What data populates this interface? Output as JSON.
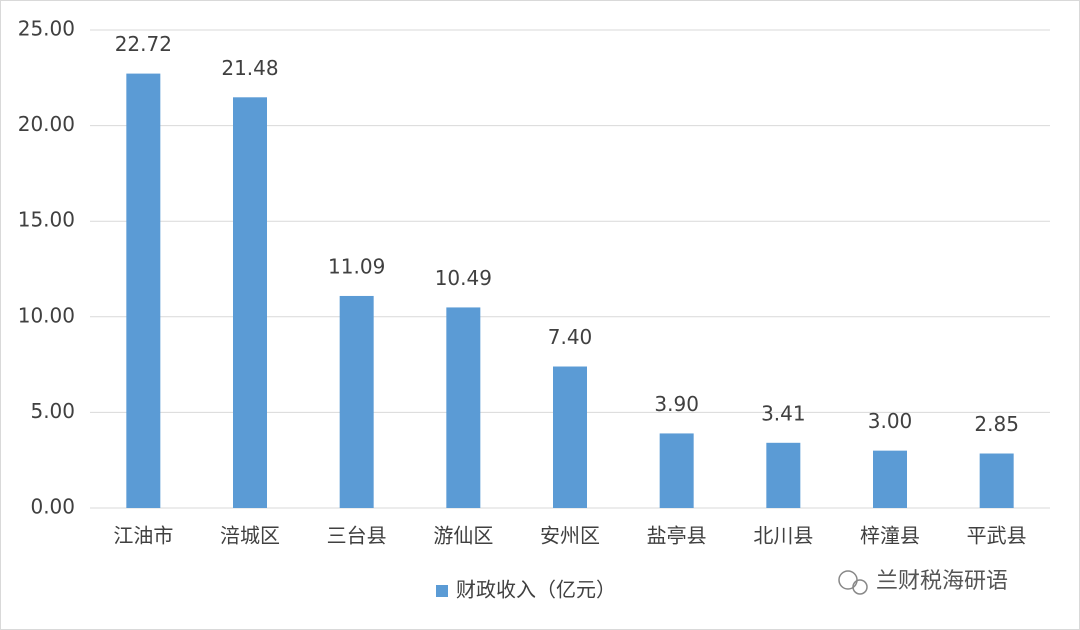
{
  "chart_data": {
    "type": "bar",
    "categories": [
      "江油市",
      "涪城区",
      "三台县",
      "游仙区",
      "安州区",
      "盐亭县",
      "北川县",
      "梓潼县",
      "平武县"
    ],
    "series": [
      {
        "name": "财政收入（亿元）",
        "color": "#5b9bd5",
        "values": [
          22.72,
          21.48,
          11.09,
          10.49,
          7.4,
          3.9,
          3.41,
          3.0,
          2.85
        ],
        "value_labels": [
          "22.72",
          "21.48",
          "11.09",
          "10.49",
          "7.40",
          "3.90",
          "3.41",
          "3.00",
          "2.85"
        ]
      }
    ],
    "ylim": [
      0,
      25
    ],
    "yticks": [
      {
        "value": 0,
        "label": "0.00"
      },
      {
        "value": 5,
        "label": "5.00"
      },
      {
        "value": 10,
        "label": "10.00"
      },
      {
        "value": 15,
        "label": "15.00"
      },
      {
        "value": 20,
        "label": "20.00"
      },
      {
        "value": 25,
        "label": "25.00"
      }
    ],
    "grid": true,
    "legend": "bottom",
    "watermark": "兰财税海研语"
  }
}
